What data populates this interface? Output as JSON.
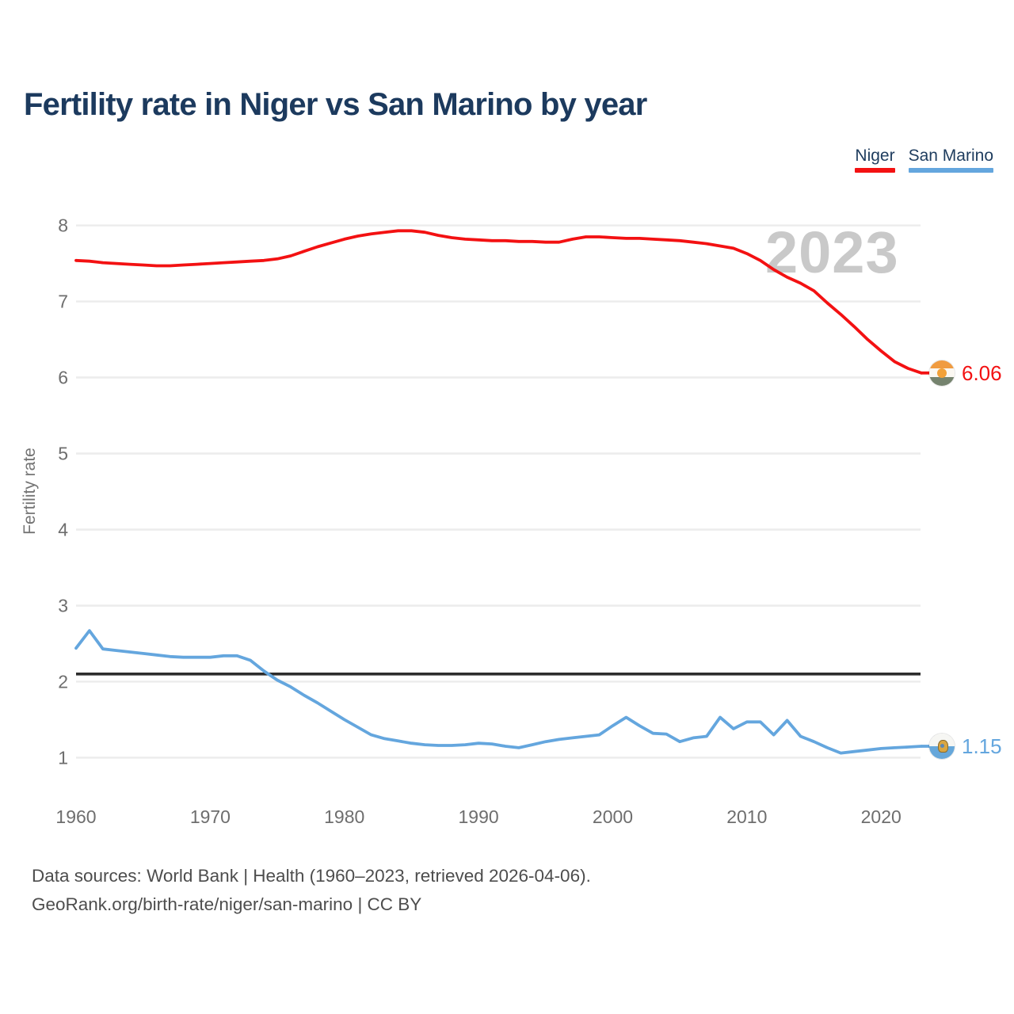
{
  "header": {
    "title": "Fertility rate in Niger vs San Marino by year"
  },
  "footer": {
    "line1": "Data sources: World Bank | Health (1960–2023, retrieved 2026-04-06).",
    "line2": "GeoRank.org/birth-rate/niger/san-marino | CC BY"
  },
  "chart_data": {
    "type": "line",
    "title": "Fertility rate in Niger vs San Marino by year",
    "xlabel": "",
    "ylabel": "Fertility rate",
    "watermark": "2023",
    "grid": true,
    "legend_position": "top-right",
    "xlim": [
      1960,
      2023
    ],
    "ylim": [
      1,
      8
    ],
    "x_ticks": [
      1960,
      1970,
      1980,
      1990,
      2000,
      2010,
      2020
    ],
    "y_ticks": [
      1,
      2,
      3,
      4,
      5,
      6,
      7,
      8
    ],
    "reference_line": {
      "value": 2.1,
      "color": "#2d2d2d"
    },
    "x": [
      1960,
      1961,
      1962,
      1963,
      1964,
      1965,
      1966,
      1967,
      1968,
      1969,
      1970,
      1971,
      1972,
      1973,
      1974,
      1975,
      1976,
      1977,
      1978,
      1979,
      1980,
      1981,
      1982,
      1983,
      1984,
      1985,
      1986,
      1987,
      1988,
      1989,
      1990,
      1991,
      1992,
      1993,
      1994,
      1995,
      1996,
      1997,
      1998,
      1999,
      2000,
      2001,
      2002,
      2003,
      2004,
      2005,
      2006,
      2007,
      2008,
      2009,
      2010,
      2011,
      2012,
      2013,
      2014,
      2015,
      2016,
      2017,
      2018,
      2019,
      2020,
      2021,
      2022,
      2023
    ],
    "series": [
      {
        "name": "Niger",
        "color": "#f31112",
        "end_label": "6.06",
        "end_value": 6.06,
        "flag_icon": "niger-flag",
        "values": [
          7.54,
          7.53,
          7.51,
          7.5,
          7.49,
          7.48,
          7.47,
          7.47,
          7.48,
          7.49,
          7.5,
          7.51,
          7.52,
          7.53,
          7.54,
          7.56,
          7.6,
          7.66,
          7.72,
          7.77,
          7.82,
          7.86,
          7.89,
          7.91,
          7.93,
          7.93,
          7.91,
          7.87,
          7.84,
          7.82,
          7.81,
          7.8,
          7.8,
          7.79,
          7.79,
          7.78,
          7.78,
          7.82,
          7.85,
          7.85,
          7.84,
          7.83,
          7.83,
          7.82,
          7.81,
          7.8,
          7.78,
          7.76,
          7.73,
          7.7,
          7.63,
          7.54,
          7.42,
          7.32,
          7.24,
          7.14,
          6.98,
          6.83,
          6.67,
          6.5,
          6.35,
          6.21,
          6.12,
          6.06
        ]
      },
      {
        "name": "San Marino",
        "color": "#64a6de",
        "end_label": "1.15",
        "end_value": 1.15,
        "flag_icon": "san-marino-flag",
        "values": [
          2.44,
          2.67,
          2.43,
          2.41,
          2.39,
          2.37,
          2.35,
          2.33,
          2.32,
          2.32,
          2.32,
          2.34,
          2.34,
          2.28,
          2.14,
          2.02,
          1.93,
          1.82,
          1.72,
          1.61,
          1.5,
          1.4,
          1.3,
          1.25,
          1.22,
          1.19,
          1.17,
          1.16,
          1.16,
          1.17,
          1.19,
          1.18,
          1.15,
          1.13,
          1.17,
          1.21,
          1.24,
          1.26,
          1.28,
          1.3,
          1.42,
          1.53,
          1.42,
          1.32,
          1.31,
          1.21,
          1.26,
          1.28,
          1.53,
          1.38,
          1.47,
          1.47,
          1.3,
          1.49,
          1.28,
          1.21,
          1.13,
          1.06,
          1.08,
          1.1,
          1.12,
          1.13,
          1.14,
          1.15
        ]
      }
    ]
  }
}
